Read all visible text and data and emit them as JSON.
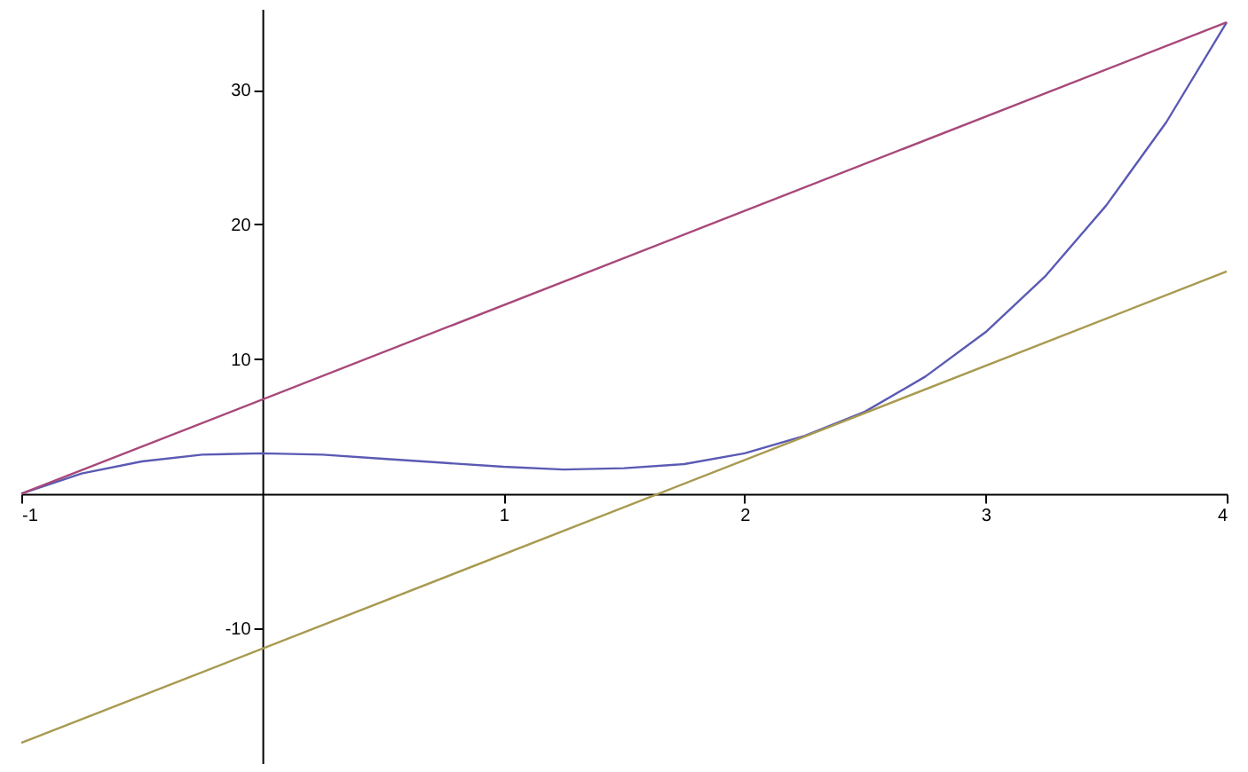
{
  "chart_data": {
    "type": "line",
    "xlim": [
      -1,
      4
    ],
    "ylim": [
      -20,
      36
    ],
    "xticks": [
      -1,
      1,
      2,
      3,
      4
    ],
    "yticks": [
      -10,
      10,
      20,
      30
    ],
    "series": [
      {
        "color": "#5a5ab4",
        "x": [
          -1,
          -0.75,
          -0.5,
          -0.25,
          0,
          0.25,
          0.5,
          0.75,
          1,
          1.25,
          1.5,
          1.75,
          2,
          2.25,
          2.5,
          2.75,
          3,
          3.25,
          3.5,
          3.75,
          4
        ],
        "values": [
          0,
          1.5,
          2.4,
          2.9,
          3,
          2.9,
          2.6,
          2.3,
          2,
          1.8,
          1.9,
          2.2,
          3,
          4.3,
          6.1,
          8.7,
          12,
          16.2,
          21.4,
          27.6,
          35
        ]
      },
      {
        "color": "#a8487a",
        "x": [
          -1,
          4
        ],
        "values": [
          0,
          35
        ]
      },
      {
        "color": "#a89a50",
        "x": [
          -1,
          4
        ],
        "values": [
          -18.5,
          16.5
        ]
      }
    ]
  }
}
